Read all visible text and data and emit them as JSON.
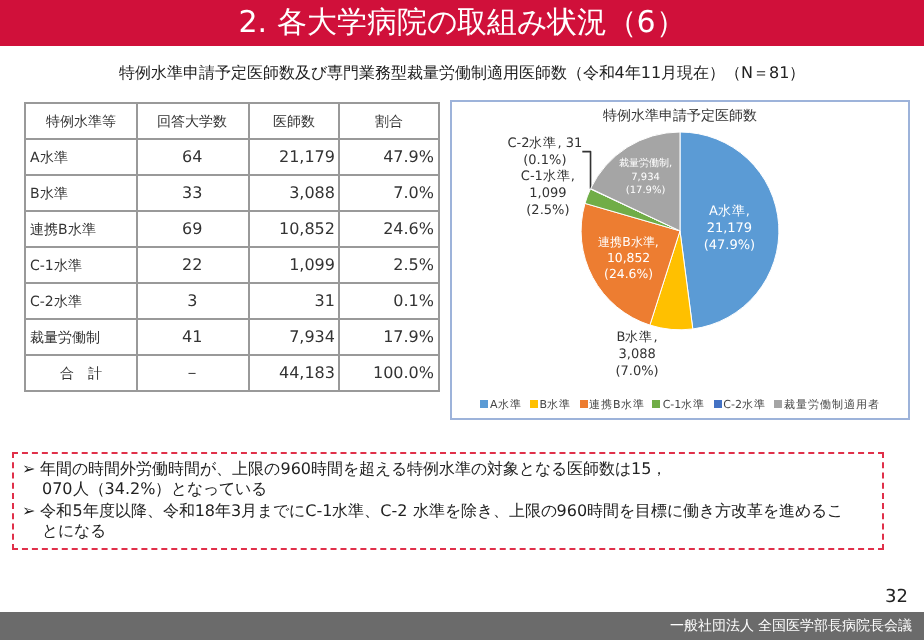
{
  "chart_data": [
    {
      "type": "other",
      "title": "2. 各大学病院の取組み状況（6）",
      "subtitle": "特例水準申請予定医師数及び専門業務型裁量労働制適用医師数（令和4年11月現在）（N＝81）",
      "ylabel": "特例水準等",
      "categories": [
        "A水準",
        "B水準",
        "連携B水準",
        "C-1水準",
        "C-2水準",
        "裁量労働制",
        "合　計"
      ],
      "series": [
        {
          "name": "回答大学数",
          "values": [
            64,
            33,
            69,
            22,
            3,
            41,
            null
          ],
          "value_labels": [
            "64",
            "33",
            "69",
            "22",
            "3",
            "41",
            "－"
          ]
        },
        {
          "name": "医師数",
          "values": [
            21179,
            3088,
            10852,
            1099,
            31,
            7934,
            44183
          ],
          "value_labels": [
            "21,179",
            "3,088",
            "10,852",
            "1,099",
            "31",
            "7,934",
            "44,183"
          ]
        },
        {
          "name": "割合",
          "values": [
            47.9,
            7.0,
            24.6,
            2.5,
            0.1,
            17.9,
            100.0
          ],
          "value_labels": [
            "47.9%",
            "7.0%",
            "24.6%",
            "2.5%",
            "0.1%",
            "17.9%",
            "100.0%"
          ]
        }
      ],
      "annotations": [
        "➢ 年間の時間外労働時間が、上限の960時間を超える特例水準の対象となる医師数は15，070人（34.2%）となっている",
        "➢ 令和5年度以降、令和18年3月までにC-1水準、C-2 水準を除き、上限の960時間を目標に働き方改革を進めることになる",
        "32",
        "一般社団法人 全国医学部長病院長会議"
      ]
    },
    {
      "type": "pie",
      "title": "特例水準申請予定医師数",
      "categories": [
        "A水準",
        "B水準",
        "連携B水準",
        "C-1水準",
        "C-2水準",
        "裁量労働制適用者"
      ],
      "values": [
        21179,
        3088,
        10852,
        1099,
        31,
        7934
      ],
      "colors": [
        "#5b9bd5",
        "#ffc000",
        "#ed7d31",
        "#70ad47",
        "#4472c4",
        "#a5a5a5"
      ],
      "value_labels": [
        "A水準,\n21,179\n(47.9%)",
        "B水準,\n3,088\n(7.0%)",
        "連携B水準,\n10,852\n(24.6%)",
        "C-1水準,\n1,099\n(2.5%)",
        "C-2水準, 31\n(0.1%)",
        "裁量労働制,\n7,934\n(17.9%)"
      ],
      "legend": "bottom"
    }
  ]
}
